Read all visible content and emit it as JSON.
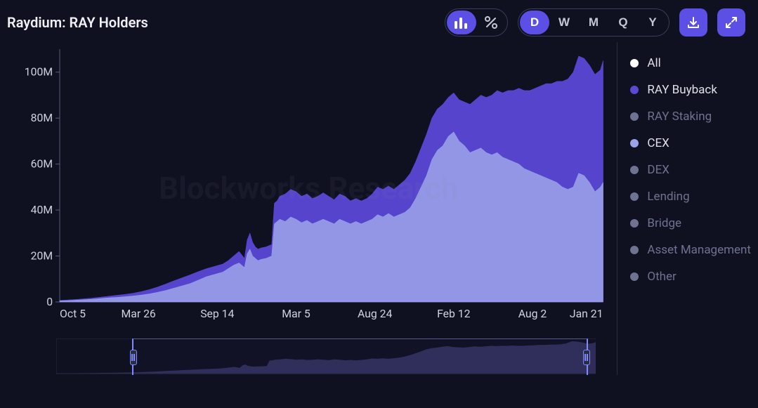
{
  "title": "Raydium: RAY Holders",
  "toolbar": {
    "view_modes": [
      {
        "name": "bars",
        "active": true
      },
      {
        "name": "percent",
        "active": false
      }
    ],
    "ranges": [
      {
        "label": "D",
        "active": true
      },
      {
        "label": "W",
        "active": false
      },
      {
        "label": "M",
        "active": false
      },
      {
        "label": "Q",
        "active": false
      },
      {
        "label": "Y",
        "active": false
      }
    ]
  },
  "chart": {
    "type": "stacked-area",
    "background_color": "#0f1020",
    "axis_color": "#5b5e7c",
    "tick_font_size": 16,
    "tick_color": "#d0d2e0",
    "watermark": "Blockworks Research",
    "y_axis": {
      "min": 0,
      "max": 110000000,
      "ticks": [
        {
          "v": 0,
          "label": "0"
        },
        {
          "v": 20000000,
          "label": "20M"
        },
        {
          "v": 40000000,
          "label": "40M"
        },
        {
          "v": 60000000,
          "label": "60M"
        },
        {
          "v": 80000000,
          "label": "80M"
        },
        {
          "v": 100000000,
          "label": "100M"
        }
      ]
    },
    "x_axis": {
      "ticks": [
        {
          "t": 0.0,
          "label": "Oct 5"
        },
        {
          "t": 0.145,
          "label": "Mar 26"
        },
        {
          "t": 0.29,
          "label": "Sep 14"
        },
        {
          "t": 0.435,
          "label": "Mar 5"
        },
        {
          "t": 0.58,
          "label": "Aug 24"
        },
        {
          "t": 0.725,
          "label": "Feb 12"
        },
        {
          "t": 0.87,
          "label": "Aug 2"
        },
        {
          "t": 1.0,
          "label": "Jan 21"
        }
      ]
    },
    "series": [
      {
        "id": "cex",
        "label": "CEX",
        "color": "#9ca4e8",
        "fill_opacity": 0.85,
        "data": [
          [
            0.0,
            0.5
          ],
          [
            0.015,
            0.6
          ],
          [
            0.03,
            0.8
          ],
          [
            0.045,
            1.0
          ],
          [
            0.06,
            1.2
          ],
          [
            0.075,
            1.5
          ],
          [
            0.09,
            1.8
          ],
          [
            0.105,
            2.0
          ],
          [
            0.12,
            2.3
          ],
          [
            0.135,
            2.6
          ],
          [
            0.15,
            3.0
          ],
          [
            0.165,
            3.5
          ],
          [
            0.18,
            4.2
          ],
          [
            0.195,
            5.0
          ],
          [
            0.21,
            6.0
          ],
          [
            0.225,
            7.0
          ],
          [
            0.24,
            8.0
          ],
          [
            0.255,
            9.5
          ],
          [
            0.27,
            11.0
          ],
          [
            0.285,
            12.0
          ],
          [
            0.3,
            13.0
          ],
          [
            0.31,
            14.5
          ],
          [
            0.32,
            16.0
          ],
          [
            0.33,
            17.0
          ],
          [
            0.34,
            15.0
          ],
          [
            0.345,
            21.0
          ],
          [
            0.35,
            23.0
          ],
          [
            0.355,
            20.0
          ],
          [
            0.36,
            19.0
          ],
          [
            0.365,
            18.0
          ],
          [
            0.37,
            18.5
          ],
          [
            0.38,
            19.0
          ],
          [
            0.39,
            20.0
          ],
          [
            0.395,
            34.0
          ],
          [
            0.4,
            35.0
          ],
          [
            0.405,
            36.0
          ],
          [
            0.415,
            35.0
          ],
          [
            0.425,
            37.0
          ],
          [
            0.435,
            36.0
          ],
          [
            0.445,
            34.5
          ],
          [
            0.455,
            35.5
          ],
          [
            0.465,
            34.0
          ],
          [
            0.475,
            35.0
          ],
          [
            0.485,
            36.0
          ],
          [
            0.495,
            35.0
          ],
          [
            0.505,
            34.0
          ],
          [
            0.515,
            36.0
          ],
          [
            0.525,
            35.0
          ],
          [
            0.535,
            34.0
          ],
          [
            0.545,
            35.0
          ],
          [
            0.555,
            34.0
          ],
          [
            0.565,
            35.0
          ],
          [
            0.575,
            36.0
          ],
          [
            0.585,
            38.0
          ],
          [
            0.595,
            37.0
          ],
          [
            0.605,
            38.5
          ],
          [
            0.615,
            37.0
          ],
          [
            0.625,
            38.0
          ],
          [
            0.635,
            39.0
          ],
          [
            0.645,
            41.0
          ],
          [
            0.655,
            45.0
          ],
          [
            0.665,
            50.0
          ],
          [
            0.675,
            55.0
          ],
          [
            0.685,
            62.0
          ],
          [
            0.695,
            66.0
          ],
          [
            0.705,
            68.0
          ],
          [
            0.715,
            72.0
          ],
          [
            0.725,
            74.0
          ],
          [
            0.735,
            70.0
          ],
          [
            0.745,
            68.0
          ],
          [
            0.755,
            65.0
          ],
          [
            0.765,
            66.0
          ],
          [
            0.775,
            67.0
          ],
          [
            0.785,
            65.0
          ],
          [
            0.795,
            64.0
          ],
          [
            0.805,
            65.0
          ],
          [
            0.815,
            63.0
          ],
          [
            0.825,
            62.0
          ],
          [
            0.835,
            61.0
          ],
          [
            0.845,
            60.0
          ],
          [
            0.855,
            58.0
          ],
          [
            0.865,
            57.0
          ],
          [
            0.875,
            56.0
          ],
          [
            0.885,
            55.0
          ],
          [
            0.895,
            54.0
          ],
          [
            0.905,
            53.0
          ],
          [
            0.915,
            52.0
          ],
          [
            0.925,
            50.0
          ],
          [
            0.935,
            49.0
          ],
          [
            0.945,
            50.0
          ],
          [
            0.955,
            56.0
          ],
          [
            0.965,
            55.0
          ],
          [
            0.975,
            52.0
          ],
          [
            0.985,
            48.0
          ],
          [
            0.995,
            50.0
          ],
          [
            1.0,
            52.0
          ]
        ]
      },
      {
        "id": "ray_buyback",
        "label": "RAY Buyback",
        "color": "#5b49d6",
        "fill_opacity": 0.95,
        "data": [
          [
            0.0,
            0.7
          ],
          [
            0.015,
            0.9
          ],
          [
            0.03,
            1.1
          ],
          [
            0.045,
            1.4
          ],
          [
            0.06,
            1.7
          ],
          [
            0.075,
            2.1
          ],
          [
            0.09,
            2.5
          ],
          [
            0.105,
            2.9
          ],
          [
            0.12,
            3.3
          ],
          [
            0.135,
            3.8
          ],
          [
            0.15,
            4.5
          ],
          [
            0.165,
            5.4
          ],
          [
            0.18,
            6.5
          ],
          [
            0.195,
            7.8
          ],
          [
            0.21,
            9.2
          ],
          [
            0.225,
            10.5
          ],
          [
            0.24,
            11.8
          ],
          [
            0.255,
            13.2
          ],
          [
            0.27,
            14.5
          ],
          [
            0.285,
            15.5
          ],
          [
            0.3,
            16.5
          ],
          [
            0.31,
            18.0
          ],
          [
            0.32,
            20.0
          ],
          [
            0.33,
            22.0
          ],
          [
            0.34,
            19.0
          ],
          [
            0.345,
            27.0
          ],
          [
            0.35,
            30.0
          ],
          [
            0.355,
            26.0
          ],
          [
            0.36,
            24.0
          ],
          [
            0.365,
            23.0
          ],
          [
            0.37,
            23.5
          ],
          [
            0.38,
            24.0
          ],
          [
            0.39,
            25.0
          ],
          [
            0.395,
            43.0
          ],
          [
            0.4,
            44.0
          ],
          [
            0.405,
            46.0
          ],
          [
            0.415,
            47.0
          ],
          [
            0.425,
            49.0
          ],
          [
            0.435,
            48.0
          ],
          [
            0.445,
            46.0
          ],
          [
            0.455,
            47.0
          ],
          [
            0.465,
            45.0
          ],
          [
            0.475,
            46.0
          ],
          [
            0.485,
            47.5
          ],
          [
            0.495,
            46.0
          ],
          [
            0.505,
            44.5
          ],
          [
            0.515,
            47.0
          ],
          [
            0.525,
            46.0
          ],
          [
            0.535,
            44.0
          ],
          [
            0.545,
            45.0
          ],
          [
            0.555,
            44.0
          ],
          [
            0.565,
            45.0
          ],
          [
            0.575,
            47.0
          ],
          [
            0.585,
            50.0
          ],
          [
            0.595,
            49.0
          ],
          [
            0.605,
            50.5
          ],
          [
            0.615,
            49.0
          ],
          [
            0.625,
            51.0
          ],
          [
            0.635,
            53.0
          ],
          [
            0.645,
            56.0
          ],
          [
            0.655,
            61.0
          ],
          [
            0.665,
            67.0
          ],
          [
            0.675,
            73.0
          ],
          [
            0.685,
            80.0
          ],
          [
            0.695,
            84.0
          ],
          [
            0.705,
            86.0
          ],
          [
            0.715,
            89.0
          ],
          [
            0.725,
            91.0
          ],
          [
            0.735,
            88.0
          ],
          [
            0.745,
            87.0
          ],
          [
            0.755,
            86.0
          ],
          [
            0.765,
            88.0
          ],
          [
            0.775,
            90.0
          ],
          [
            0.785,
            89.0
          ],
          [
            0.795,
            90.0
          ],
          [
            0.805,
            92.0
          ],
          [
            0.815,
            91.0
          ],
          [
            0.825,
            92.0
          ],
          [
            0.835,
            92.0
          ],
          [
            0.845,
            93.0
          ],
          [
            0.855,
            92.0
          ],
          [
            0.865,
            92.0
          ],
          [
            0.875,
            93.0
          ],
          [
            0.885,
            94.0
          ],
          [
            0.895,
            95.0
          ],
          [
            0.905,
            95.0
          ],
          [
            0.915,
            96.0
          ],
          [
            0.925,
            96.0
          ],
          [
            0.935,
            97.0
          ],
          [
            0.945,
            100.0
          ],
          [
            0.955,
            107.0
          ],
          [
            0.965,
            106.0
          ],
          [
            0.975,
            103.0
          ],
          [
            0.985,
            99.0
          ],
          [
            0.995,
            101.0
          ],
          [
            1.0,
            105.0
          ]
        ]
      }
    ]
  },
  "legend": {
    "items": [
      {
        "label": "All",
        "color": "#ffffff",
        "active": true
      },
      {
        "label": "RAY Buyback",
        "color": "#5b49d6",
        "active": true
      },
      {
        "label": "RAY Staking",
        "color": "#6f7290",
        "active": false
      },
      {
        "label": "CEX",
        "color": "#9ca4e8",
        "active": true
      },
      {
        "label": "DEX",
        "color": "#6f7290",
        "active": false
      },
      {
        "label": "Lending",
        "color": "#6f7290",
        "active": false
      },
      {
        "label": "Bridge",
        "color": "#6f7290",
        "active": false
      },
      {
        "label": "Asset Management",
        "color": "#6f7290",
        "active": false
      },
      {
        "label": "Other",
        "color": "#6f7290",
        "active": false
      }
    ]
  },
  "range_slider": {
    "window_start": 0.14,
    "window_end": 0.985,
    "track_fill": "#3d3b70",
    "outline": "#55588a"
  }
}
